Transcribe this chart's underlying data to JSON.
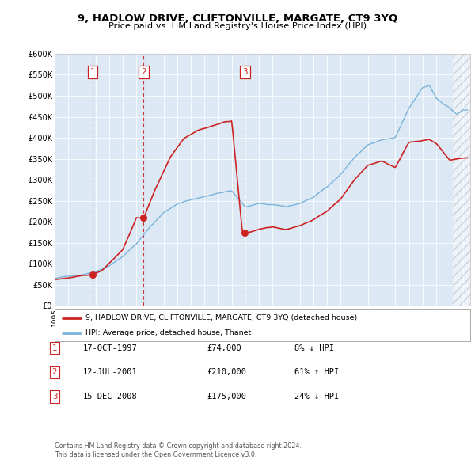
{
  "title": "9, HADLOW DRIVE, CLIFTONVILLE, MARGATE, CT9 3YQ",
  "subtitle": "Price paid vs. HM Land Registry's House Price Index (HPI)",
  "bg_color": "#dce9f5",
  "red_line_label": "9, HADLOW DRIVE, CLIFTONVILLE, MARGATE, CT9 3YQ (detached house)",
  "blue_line_label": "HPI: Average price, detached house, Thanet",
  "transactions": [
    {
      "num": 1,
      "date": "17-OCT-1997",
      "price": 74000,
      "pct": "8%",
      "dir": "↓",
      "year_x": 1997.79
    },
    {
      "num": 2,
      "date": "12-JUL-2001",
      "price": 210000,
      "pct": "61%",
      "dir": "↑",
      "year_x": 2001.53
    },
    {
      "num": 3,
      "date": "15-DEC-2008",
      "price": 175000,
      "pct": "24%",
      "dir": "↓",
      "year_x": 2008.96
    }
  ],
  "footer": "Contains HM Land Registry data © Crown copyright and database right 2024.\nThis data is licensed under the Open Government Licence v3.0.",
  "ylim": [
    0,
    600000
  ],
  "yticks": [
    0,
    50000,
    100000,
    150000,
    200000,
    250000,
    300000,
    350000,
    400000,
    450000,
    500000,
    550000,
    600000
  ],
  "ytick_labels": [
    "£0",
    "£50K",
    "£100K",
    "£150K",
    "£200K",
    "£250K",
    "£300K",
    "£350K",
    "£400K",
    "£450K",
    "£500K",
    "£550K",
    "£600K"
  ],
  "xlim_start": 1995.0,
  "xlim_end": 2025.5,
  "hatch_start": 2024.25,
  "table_rows": [
    [
      "1",
      "17-OCT-1997",
      "£74,000",
      "8% ↓ HPI"
    ],
    [
      "2",
      "12-JUL-2001",
      "£210,000",
      "61% ↑ HPI"
    ],
    [
      "3",
      "15-DEC-2008",
      "£175,000",
      "24% ↓ HPI"
    ]
  ]
}
